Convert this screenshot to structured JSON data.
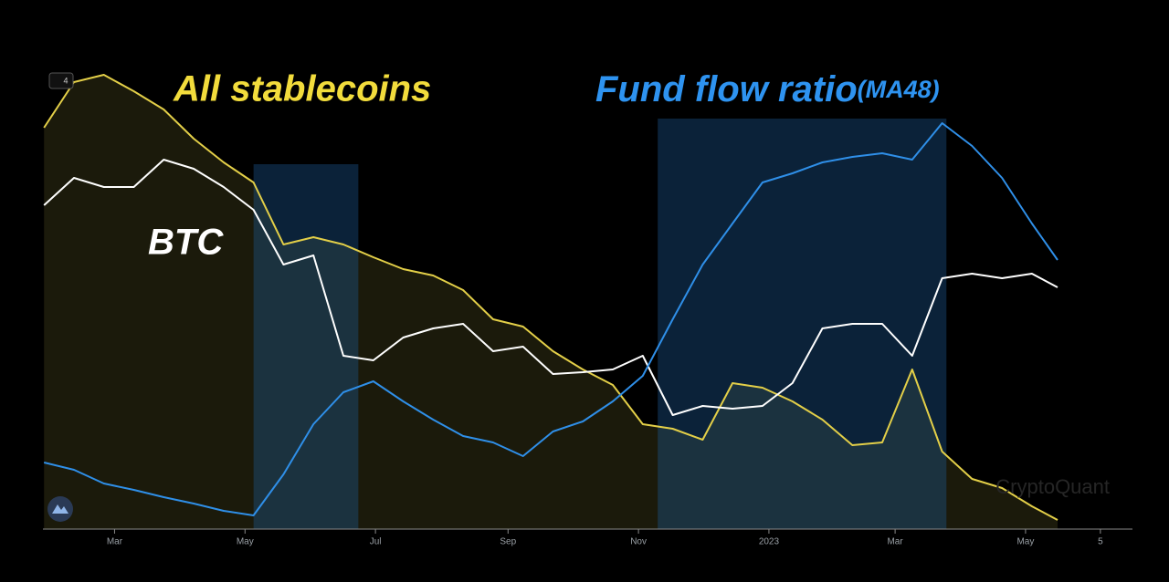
{
  "chart_data": {
    "type": "line",
    "annotations": {
      "stablecoins": "All stablecoins",
      "fund_flow": "Fund flow ratio",
      "fund_flow_suffix": "(MA48)",
      "btc": "BTC"
    },
    "watermark": "CryptoQuant",
    "toolbar_badge": "4",
    "x": [
      -33,
      -19,
      -5,
      9,
      23,
      37,
      51,
      65,
      79,
      93,
      107,
      121,
      135,
      149,
      163,
      177,
      191,
      205,
      219,
      233,
      247,
      261,
      275,
      289,
      303,
      317,
      331,
      345,
      359,
      373,
      387,
      401,
      415,
      429,
      441
    ],
    "xlim": [
      -33.5,
      476
    ],
    "xticks": [
      {
        "value": 0,
        "label": "Mar"
      },
      {
        "value": 61,
        "label": "May"
      },
      {
        "value": 122,
        "label": "Jul"
      },
      {
        "value": 184,
        "label": "Sep"
      },
      {
        "value": 245,
        "label": "Nov"
      },
      {
        "value": 306,
        "label": "2023"
      },
      {
        "value": 365,
        "label": "Mar"
      },
      {
        "value": 426,
        "label": "May"
      },
      {
        "value": 461,
        "label": "5"
      }
    ],
    "ylim": [
      0,
      100
    ],
    "highlights": [
      {
        "x": [
          65,
          114
        ],
        "top": 80
      },
      {
        "x": [
          254,
          389
        ],
        "top": 90
      }
    ],
    "series": [
      {
        "name": "All stablecoins",
        "color": "#e3cf48",
        "fill": "#1b1a0b",
        "values": [
          88,
          98,
          99.6,
          96,
          92,
          85.6,
          80.4,
          76,
          62.4,
          64,
          62.4,
          59.6,
          57,
          55.6,
          52.4,
          46,
          44.4,
          39,
          35,
          31.6,
          23,
          22,
          19.6,
          32,
          31,
          28,
          24,
          18.4,
          19,
          35,
          17,
          11,
          9,
          5,
          2
        ]
      },
      {
        "name": "BTC",
        "color": "#ffffff",
        "values": [
          71,
          77,
          75,
          75,
          81,
          79,
          75,
          70,
          58,
          60,
          38,
          37,
          42,
          44,
          45,
          39,
          40,
          34,
          34.4,
          35,
          38,
          25,
          27,
          26.4,
          27,
          32,
          44,
          45,
          45,
          38,
          55,
          56,
          55,
          56,
          53
        ]
      },
      {
        "name": "Fund flow ratio(MA48)",
        "color": "#2f8fe8",
        "values": [
          14.6,
          13,
          10,
          8.6,
          7,
          5.6,
          4,
          3,
          12,
          23,
          30,
          32.4,
          28,
          24,
          20.4,
          19,
          16,
          21.4,
          23.6,
          28,
          33.6,
          46,
          58,
          67,
          76,
          78,
          80.4,
          81.6,
          82.4,
          81,
          89,
          84,
          77,
          67,
          59
        ]
      }
    ]
  }
}
